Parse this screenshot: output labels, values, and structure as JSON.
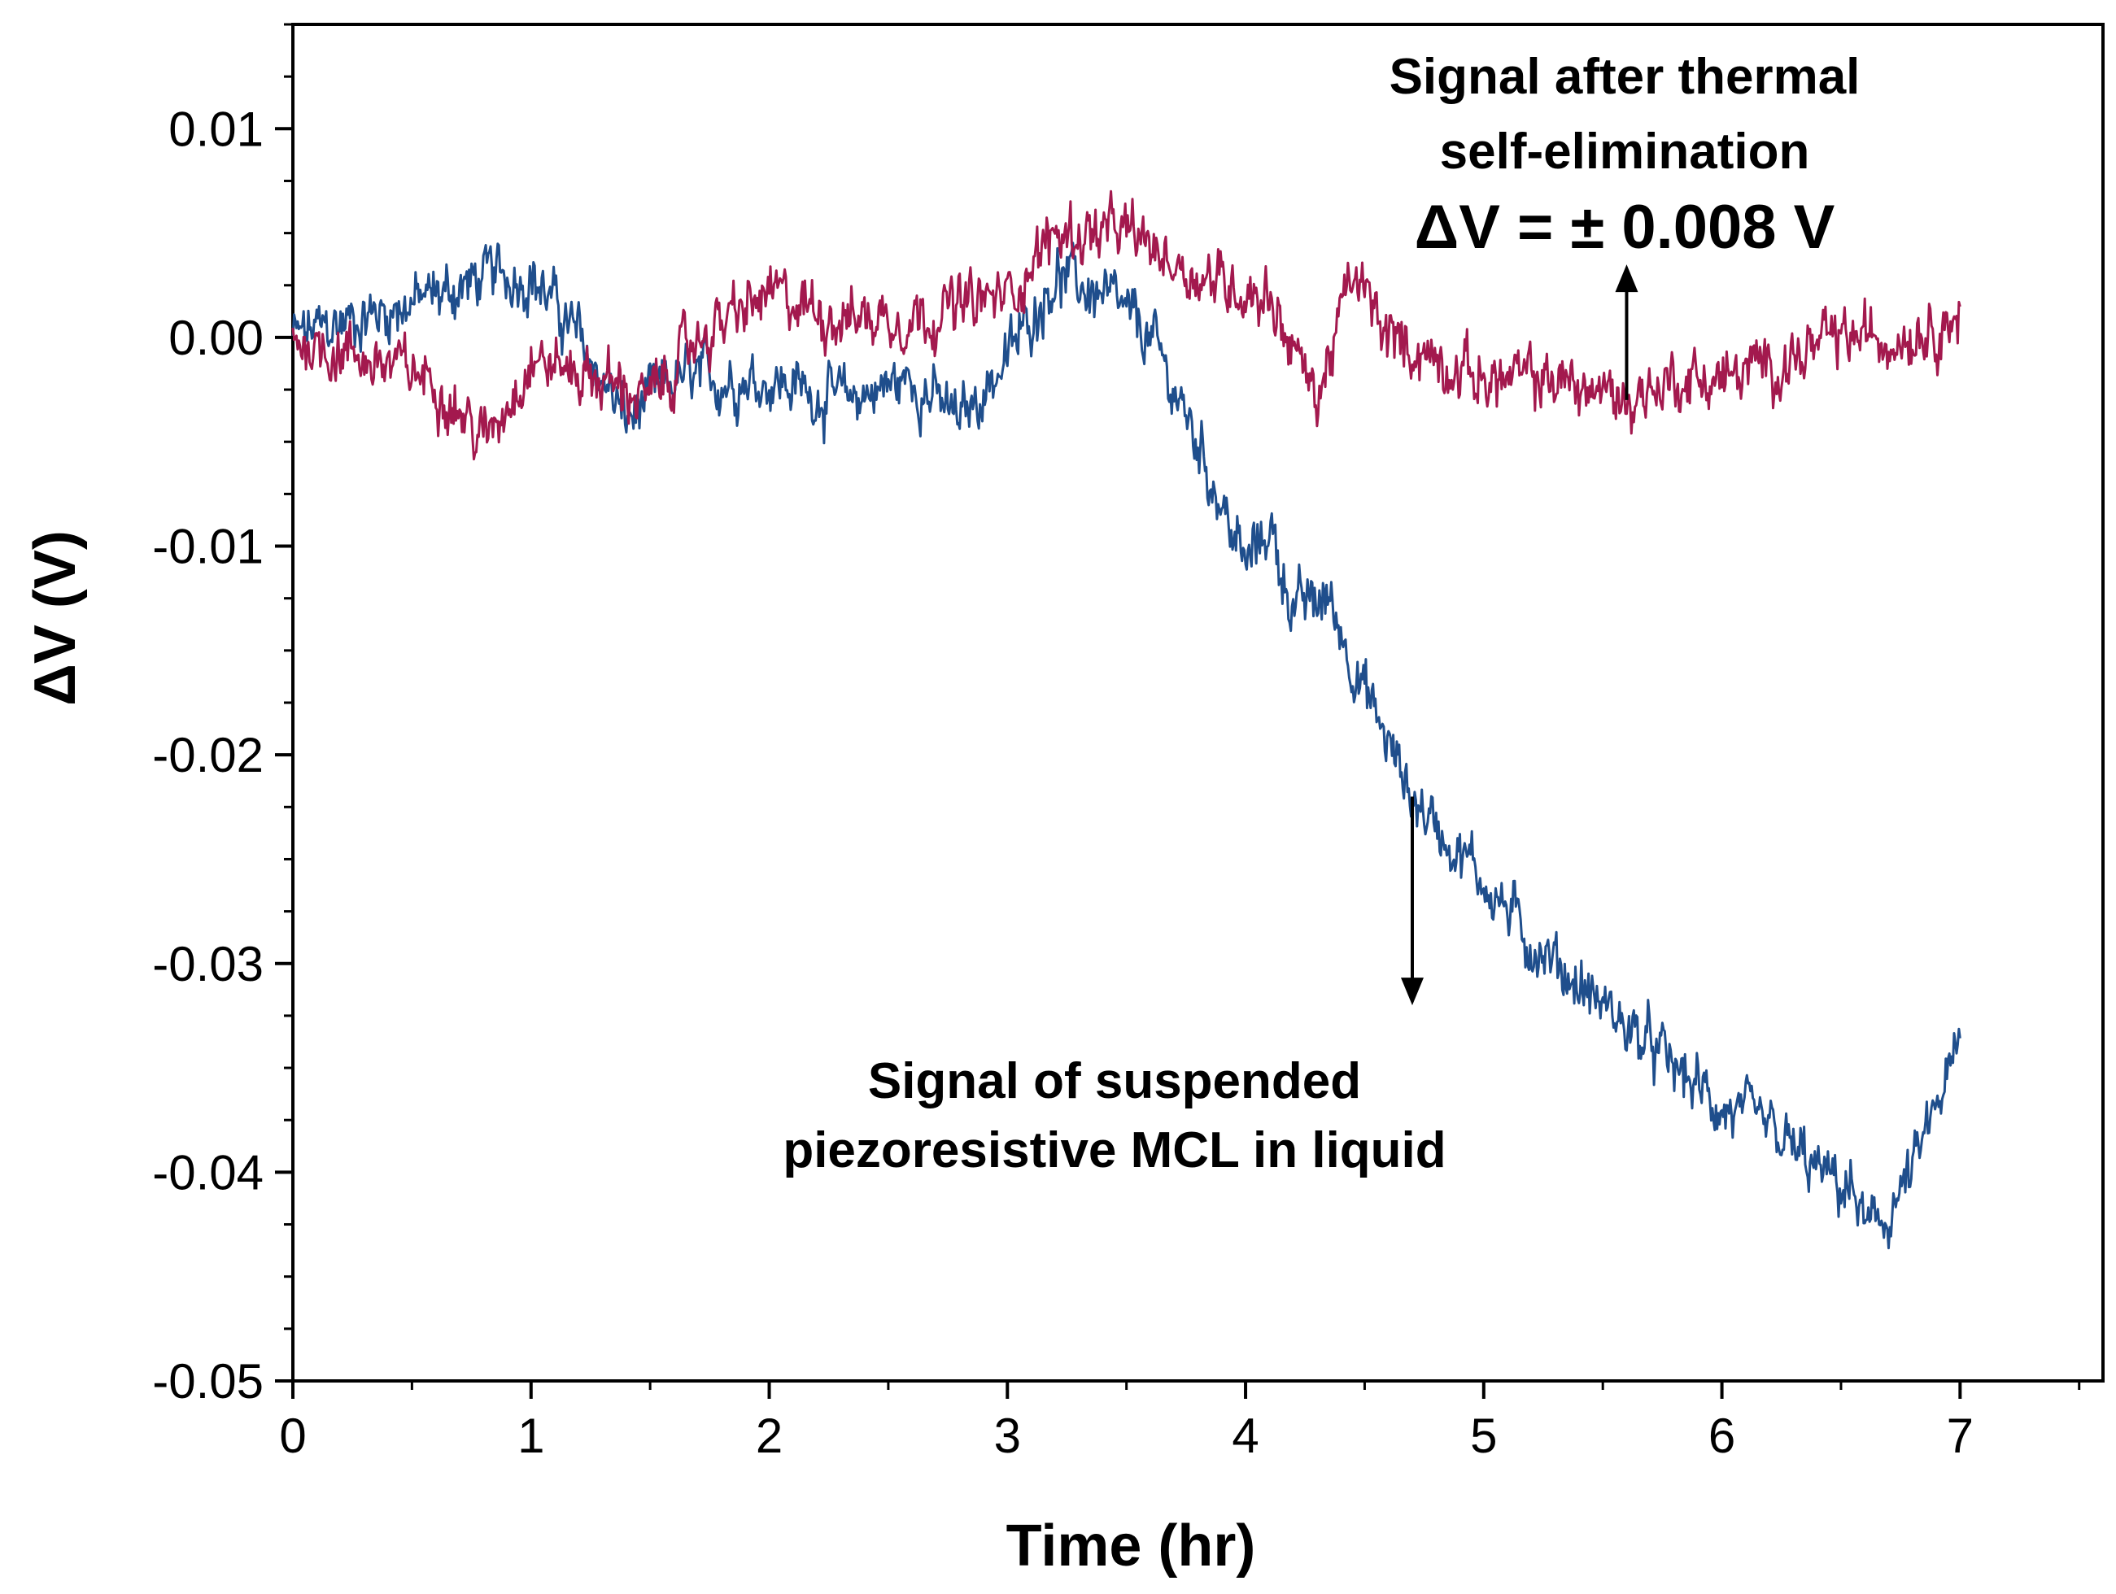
{
  "chart_data": {
    "type": "line",
    "title": "",
    "xlabel": "Time (hr)",
    "ylabel": "ΔV (V)",
    "xlim": [
      0,
      7.6
    ],
    "ylim": [
      -0.05,
      0.015
    ],
    "xticks": [
      0,
      1,
      2,
      3,
      4,
      5,
      6,
      7
    ],
    "xtick_labels": [
      "0",
      "1",
      "2",
      "3",
      "4",
      "5",
      "6",
      "7"
    ],
    "yticks": [
      0.01,
      0.0,
      -0.01,
      -0.02,
      -0.03,
      -0.04,
      -0.05
    ],
    "ytick_labels": [
      "0.01",
      "0.00",
      "-0.01",
      "-0.02",
      "-0.03",
      "-0.04",
      "-0.05"
    ],
    "grid": false,
    "series": [
      {
        "name": "Signal of suspended piezoresistive MCL in liquid",
        "color": "#1f4e8c",
        "x": [
          0,
          0.3,
          0.6,
          0.85,
          1.0,
          1.2,
          1.4,
          1.6,
          2.0,
          2.3,
          2.6,
          2.8,
          3.0,
          3.2,
          3.4,
          3.6,
          3.8,
          4.0,
          4.1,
          4.2,
          4.35,
          4.5,
          4.7,
          5.0,
          5.2,
          5.4,
          5.6,
          5.8,
          6.0,
          6.2,
          6.4,
          6.55,
          6.62,
          6.7,
          6.8,
          6.9,
          7.0
        ],
        "values": [
          0.0,
          0.001,
          0.002,
          0.003,
          0.003,
          0.0,
          -0.004,
          -0.002,
          -0.002,
          -0.003,
          -0.002,
          -0.004,
          -0.001,
          0.003,
          0.002,
          0.0,
          -0.005,
          -0.011,
          -0.009,
          -0.013,
          -0.0125,
          -0.017,
          -0.022,
          -0.026,
          -0.029,
          -0.031,
          -0.033,
          -0.035,
          -0.037,
          -0.038,
          -0.04,
          -0.041,
          -0.043,
          -0.042,
          -0.04,
          -0.037,
          -0.034
        ]
      },
      {
        "name": "Signal after thermal self-elimination",
        "color": "#a3194e",
        "x": [
          0,
          0.3,
          0.6,
          0.8,
          1.0,
          1.3,
          1.5,
          1.7,
          2.0,
          2.3,
          2.6,
          3.0,
          3.2,
          3.5,
          3.8,
          4.1,
          4.3,
          4.45,
          4.6,
          5.0,
          5.3,
          5.6,
          5.8,
          6.0,
          6.3,
          6.5,
          6.7,
          7.0
        ],
        "values": [
          0.0,
          -0.001,
          -0.002,
          -0.005,
          -0.001,
          -0.002,
          -0.003,
          0.0,
          0.002,
          0.001,
          0.001,
          0.002,
          0.005,
          0.005,
          0.003,
          0.002,
          -0.003,
          0.003,
          0.0,
          -0.002,
          -0.002,
          -0.003,
          -0.002,
          -0.002,
          -0.001,
          0.0,
          0.0,
          0.001
        ]
      }
    ],
    "annotations": [
      {
        "id": "thermal",
        "lines": [
          "Signal after thermal",
          "self-elimination"
        ],
        "value_text": "ΔV = ± 0.008 V",
        "arrow": {
          "x": 5.6,
          "from": -0.003,
          "to": 0.0035
        }
      },
      {
        "id": "suspended",
        "lines": [
          "Signal of suspended",
          "piezoresistive MCL in liquid"
        ],
        "arrow": {
          "x": 4.7,
          "from": -0.022,
          "to": -0.032
        }
      }
    ]
  }
}
